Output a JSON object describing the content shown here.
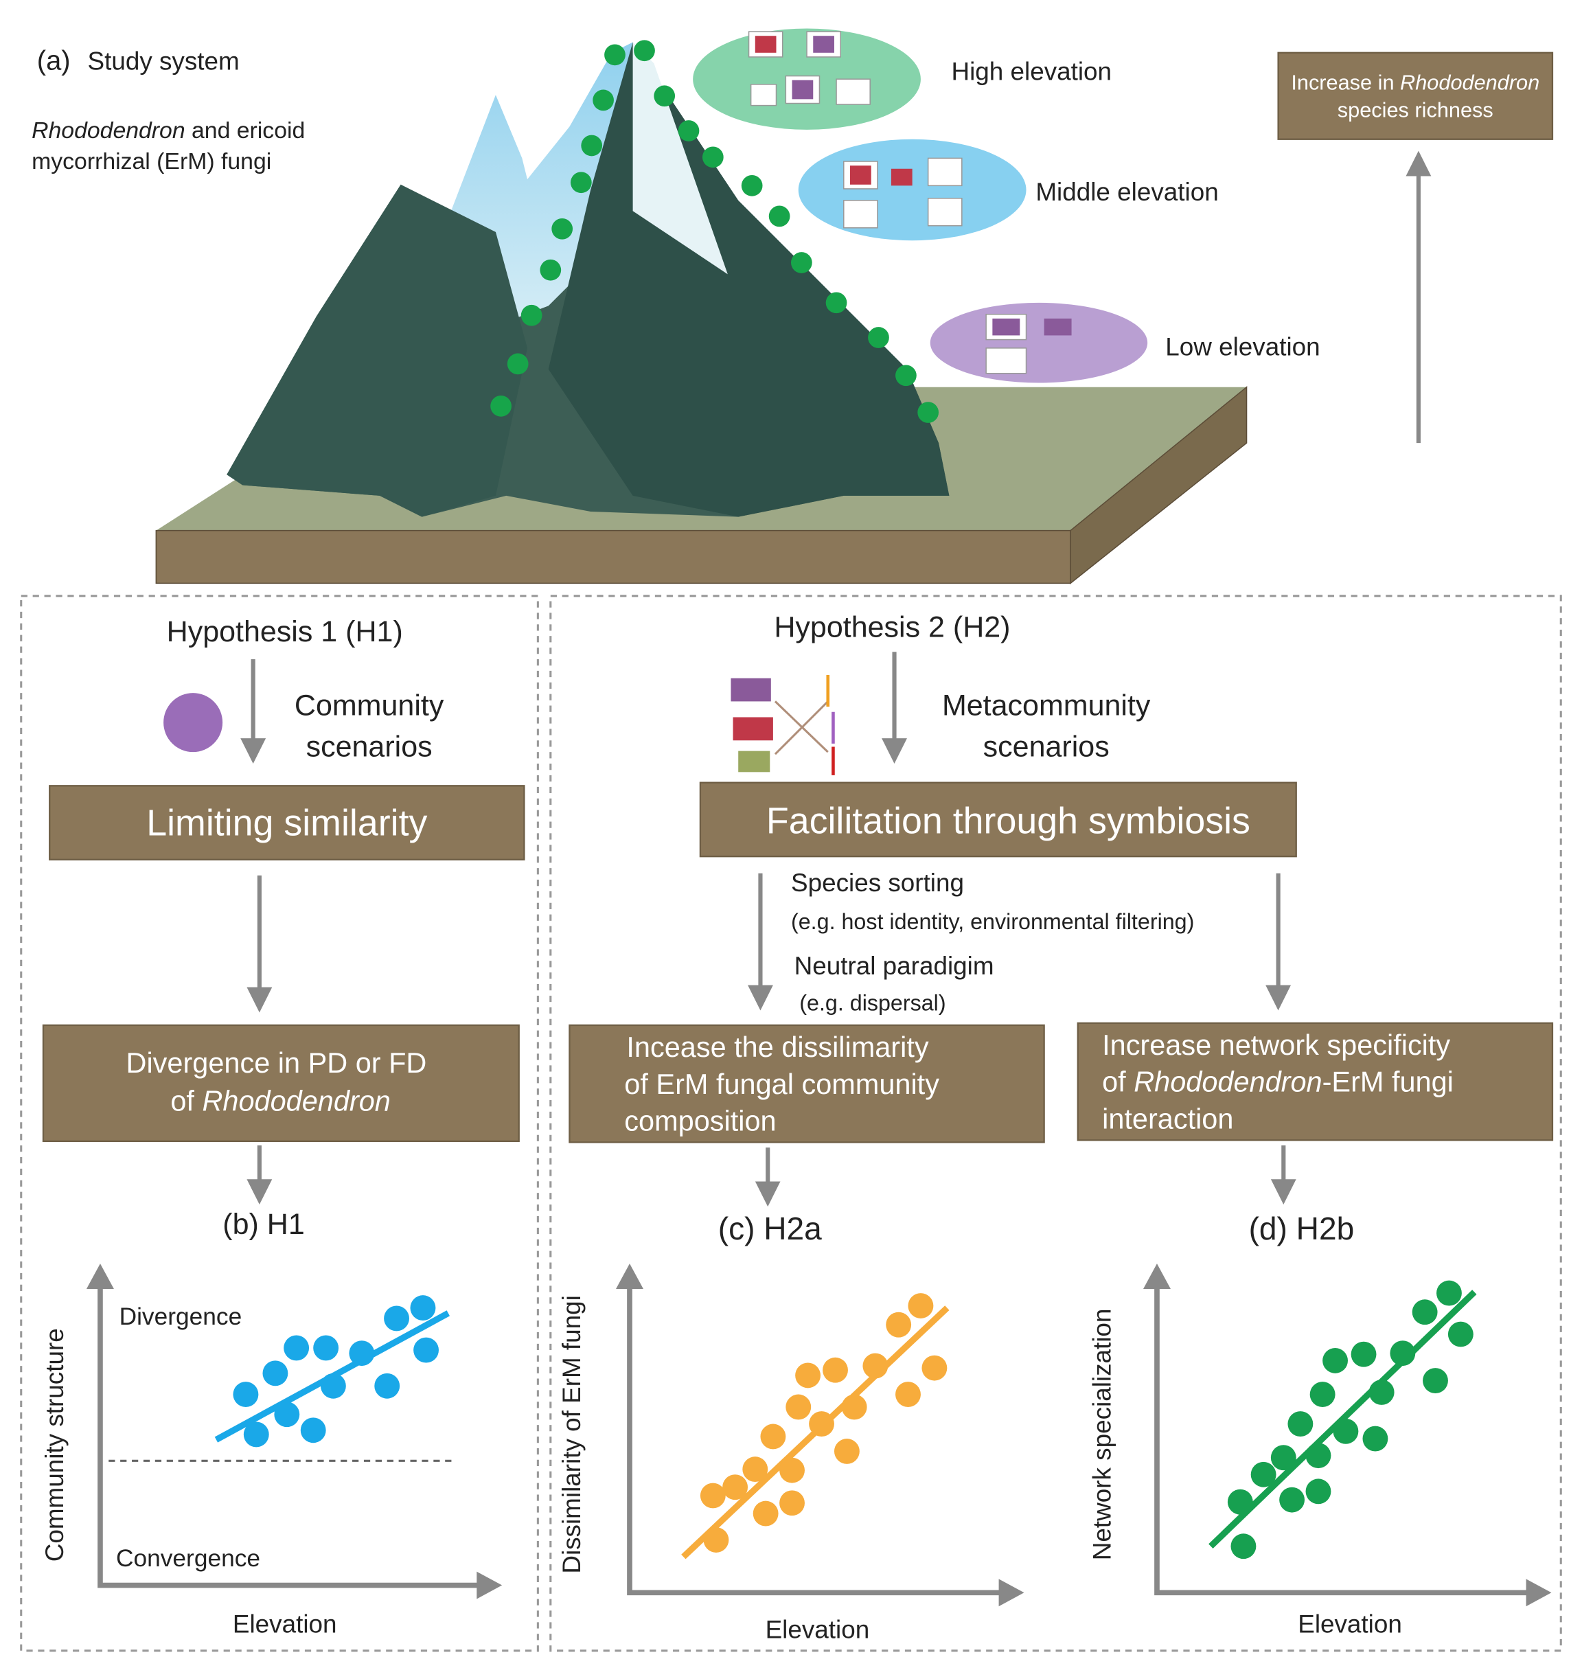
{
  "panel_a": {
    "label": "(a)",
    "title": "Study system",
    "subtitle_italic": "Rhododendron",
    "subtitle_rest": " and ericoid",
    "subtitle_line2": "mycorrhizal (ErM) fungi",
    "high": "High elevation",
    "middle": "Middle elevation",
    "low": "Low elevation",
    "richness_pre": "Increase in ",
    "richness_italic": "Rhododendron",
    "richness_line2": "species richness"
  },
  "h1": {
    "title": "Hypothesis 1 (H1)",
    "scenario_1": "Community",
    "scenario_2": "scenarios",
    "box": "Limiting similarity",
    "result_1": "Divergence in PD or FD",
    "result_2_pre": "of ",
    "result_2_italic": "Rhododendron",
    "panel": "(b) H1",
    "y_label": "Community structure",
    "x_label": "Elevation",
    "top": "Divergence",
    "bottom": "Convergence"
  },
  "h2": {
    "title": "Hypothesis 2 (H2)",
    "scenario_1": "Metacommunity",
    "scenario_2": "scenarios",
    "box": "Facilitation through symbiosis",
    "sorting": "Species sorting",
    "sorting_note": "(e.g. host identity, environmental filtering)",
    "neutral": "Neutral paradigim",
    "neutral_note": "(e.g. dispersal)",
    "left_1": "Incease the dissilimarity",
    "left_2": "of ErM fungal community",
    "left_3": "composition",
    "right_1": "Increase network specificity",
    "right_2_pre": "of ",
    "right_2_italic": "Rhododendron",
    "right_2_post": "-ErM fungi",
    "right_3": "interaction",
    "panel_c": "(c) H2a",
    "c_y_label": "Dissimilarity of ErM fungi",
    "c_x_label": "Elevation",
    "panel_d": "(d) H2b",
    "d_y_label": "Network specialization",
    "d_x_label": "Elevation"
  }
}
